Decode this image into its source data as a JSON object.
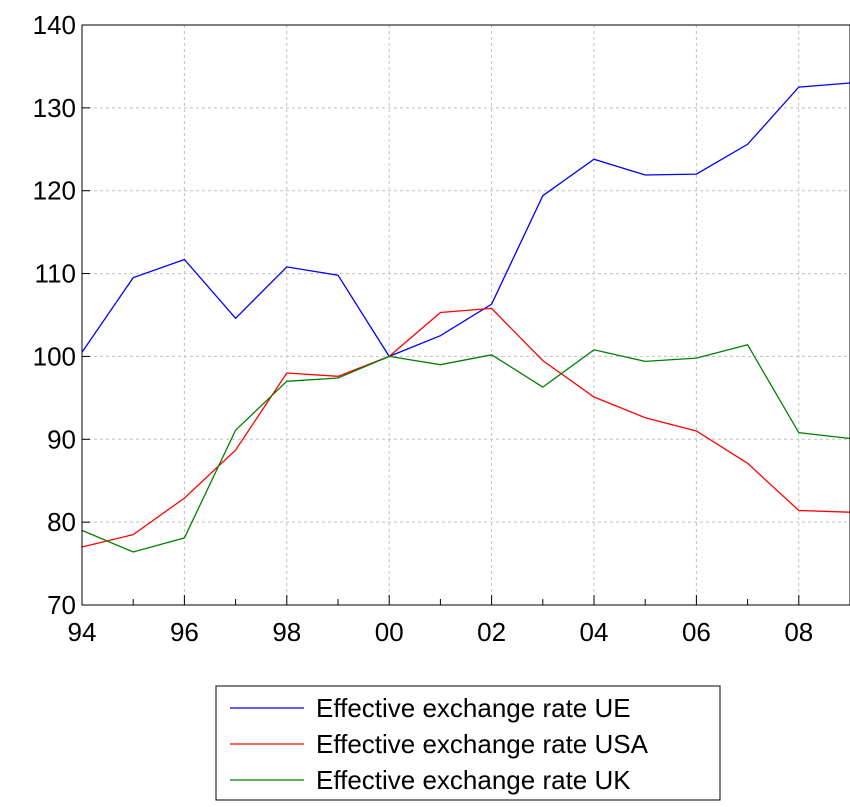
{
  "chart_data": {
    "type": "line",
    "x": [
      "94",
      "95",
      "96",
      "97",
      "98",
      "99",
      "00",
      "01",
      "02",
      "03",
      "04",
      "05",
      "06",
      "07",
      "08",
      "09"
    ],
    "x_tick_labels": [
      "94",
      "96",
      "98",
      "00",
      "02",
      "04",
      "06",
      "08"
    ],
    "y_tick_labels": [
      "70",
      "80",
      "90",
      "100",
      "110",
      "120",
      "130",
      "140"
    ],
    "ylim": [
      70,
      140
    ],
    "grid": true,
    "legend_position": "bottom",
    "series": [
      {
        "name": "Effective exchange rate UE",
        "color": "#0000ff",
        "values": [
          100.5,
          109.5,
          111.7,
          104.6,
          110.8,
          109.8,
          100.0,
          102.5,
          106.3,
          119.4,
          123.8,
          121.9,
          122.0,
          125.6,
          132.5,
          133.0
        ]
      },
      {
        "name": "Effective exchange rate USA",
        "color": "#ff0000",
        "values": [
          77.0,
          78.5,
          82.9,
          88.7,
          98.0,
          97.6,
          100.0,
          105.3,
          105.8,
          99.5,
          95.1,
          92.6,
          91.0,
          87.1,
          81.4,
          81.2
        ]
      },
      {
        "name": "Effective exchange rate UK",
        "color": "#008000",
        "values": [
          79.0,
          76.4,
          78.1,
          91.1,
          97.0,
          97.4,
          100.0,
          99.0,
          100.2,
          96.3,
          100.8,
          99.4,
          99.8,
          101.4,
          90.8,
          90.1
        ]
      }
    ]
  }
}
